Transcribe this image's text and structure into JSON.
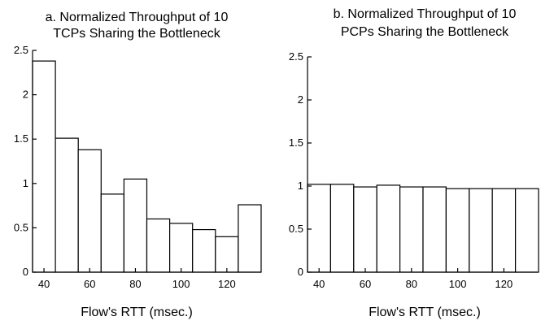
{
  "chart_data": [
    {
      "type": "bar",
      "title_lines": [
        "a. Normalized Throughput of 10",
        "TCPs Sharing the Bottleneck"
      ],
      "xlabel": "Flow's RTT (msec.)",
      "ylabel": "",
      "x": [
        40,
        50,
        60,
        70,
        80,
        90,
        100,
        110,
        120,
        130
      ],
      "values": [
        2.38,
        1.51,
        1.38,
        0.88,
        1.05,
        0.6,
        0.55,
        0.48,
        0.4,
        0.76
      ],
      "xlim": [
        35,
        135
      ],
      "ylim": [
        0,
        2.5
      ],
      "xticks": [
        40,
        60,
        80,
        100,
        120
      ],
      "yticks": [
        "0",
        "0.5",
        "1",
        "1.5",
        "2",
        "2.5"
      ],
      "grid": false,
      "bar_color": "#ffffff",
      "edge_color": "#000000"
    },
    {
      "type": "bar",
      "title_lines": [
        "b. Normalized Throughput of 10",
        "PCPs Sharing the Bottleneck"
      ],
      "xlabel": "Flow's RTT (msec.)",
      "ylabel": "",
      "x": [
        40,
        50,
        60,
        70,
        80,
        90,
        100,
        110,
        120,
        130
      ],
      "values": [
        1.02,
        1.02,
        0.99,
        1.01,
        0.99,
        0.99,
        0.97,
        0.97,
        0.97,
        0.97
      ],
      "xlim": [
        35,
        135
      ],
      "ylim": [
        0,
        2.5
      ],
      "xticks": [
        40,
        60,
        80,
        100,
        120
      ],
      "yticks": [
        "0",
        "0.5",
        "1",
        "1.5",
        "2",
        "2.5"
      ],
      "grid": false,
      "bar_color": "#ffffff",
      "edge_color": "#000000"
    }
  ]
}
